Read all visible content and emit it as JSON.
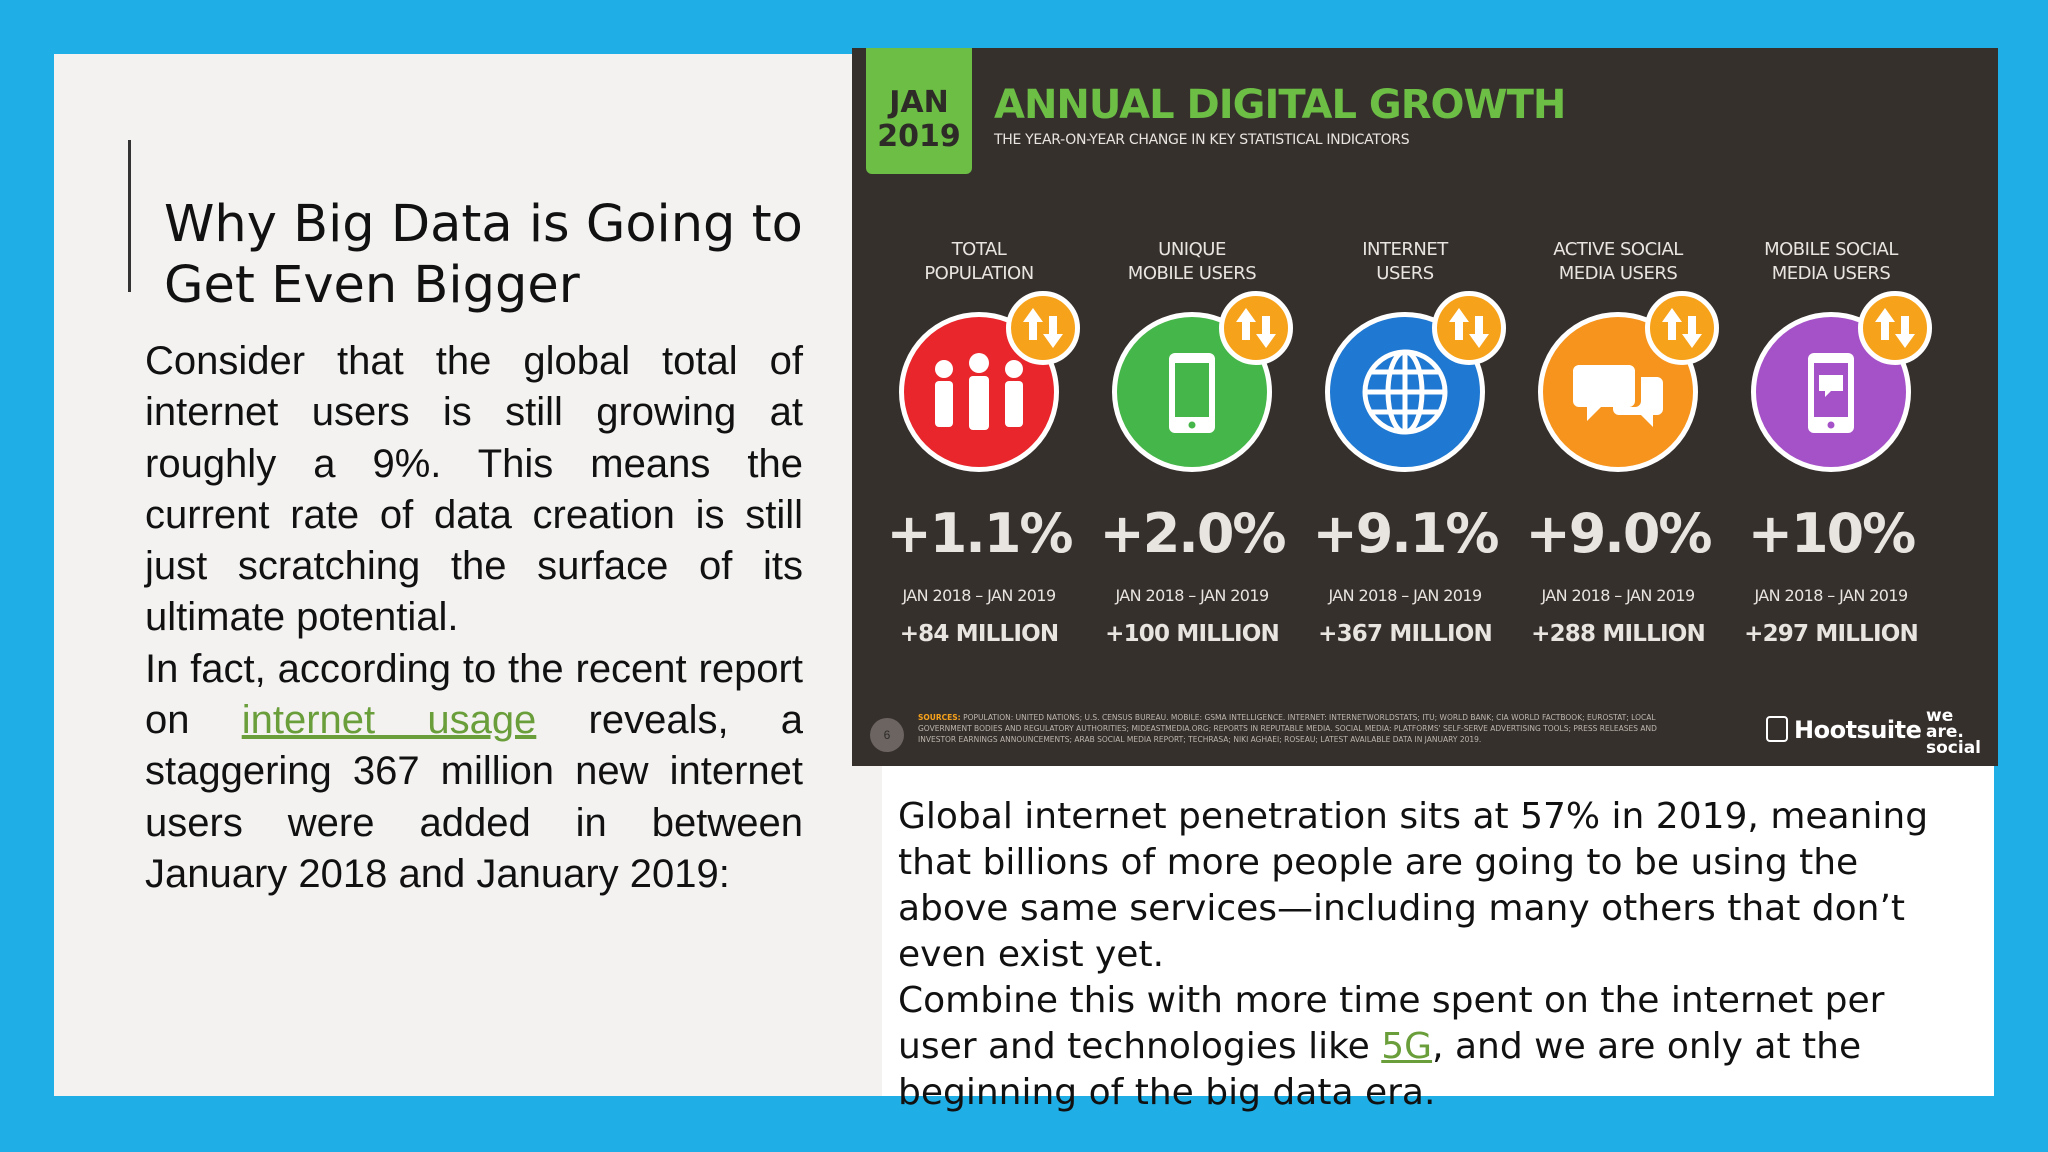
{
  "slide": {
    "title": "Why Big Data is Going to Get Even Bigger",
    "left_text": {
      "p1": "Consider that the global total of internet users is still growing at roughly a 9%. This means the current rate of data creation is still just scratching the surface of its ultimate potential.",
      "p2_before": "In fact, according to the recent report on ",
      "p2_link": "internet usage",
      "p2_after": " reveals, a staggering 367 million new internet users were added in between January 2018 and January 2019:"
    },
    "right_text": {
      "p1": "Global internet penetration sits at 57% in 2019, meaning that billions of more people are going to be using the above same services—including many others that don’t even exist yet.",
      "p2_before": "Combine this with more time spent on the internet per user and technologies like ",
      "p2_link": "5G",
      "p2_after": ", and we are only at the beginning of the big data era."
    },
    "colors": {
      "background": "#1faee6",
      "link": "#6a9e3a",
      "left_panel": "#f3f2f1"
    }
  },
  "infographic": {
    "date_line1": "JAN",
    "date_line2": "2019",
    "title": "ANNUAL DIGITAL GROWTH",
    "subtitle": "THE YEAR-ON-YEAR CHANGE IN KEY STATISTICAL INDICATORS",
    "metrics": [
      {
        "label_1": "TOTAL",
        "label_2": "POPULATION",
        "pct": "+1.1%",
        "period": "JAN 2018 – JAN 2019",
        "delta": "+84 MILLION",
        "color": "#e8262b",
        "icon": "people-icon"
      },
      {
        "label_1": "UNIQUE",
        "label_2": "MOBILE USERS",
        "pct": "+2.0%",
        "period": "JAN 2018 – JAN 2019",
        "delta": "+100 MILLION",
        "color": "#45b649",
        "icon": "phone-icon"
      },
      {
        "label_1": "INTERNET",
        "label_2": "USERS",
        "pct": "+9.1%",
        "period": "JAN 2018 – JAN 2019",
        "delta": "+367 MILLION",
        "color": "#1f78d1",
        "icon": "globe-icon"
      },
      {
        "label_1": "ACTIVE SOCIAL",
        "label_2": "MEDIA USERS",
        "pct": "+9.0%",
        "period": "JAN 2018 – JAN 2019",
        "delta": "+288 MILLION",
        "color": "#f7941d",
        "icon": "chat-icon"
      },
      {
        "label_1": "MOBILE SOCIAL",
        "label_2": "MEDIA USERS",
        "pct": "+10%",
        "period": "JAN 2018 – JAN 2019",
        "delta": "+297 MILLION",
        "color": "#a552c8",
        "icon": "mobile-chat-icon"
      }
    ],
    "sources_label": "SOURCES:",
    "sources_text": "POPULATION: UNITED NATIONS; U.S. CENSUS BUREAU. MOBILE: GSMA INTELLIGENCE. INTERNET: INTERNETWORLDSTATS; ITU; WORLD BANK; CIA WORLD FACTBOOK; EUROSTAT; LOCAL GOVERNMENT BODIES AND REGULATORY AUTHORITIES; MIDEASTMEDIA.ORG; REPORTS IN REPUTABLE MEDIA. SOCIAL MEDIA: PLATFORMS' SELF-SERVE ADVERTISING TOOLS; PRESS RELEASES AND INVESTOR EARNINGS ANNOUNCEMENTS; ARAB SOCIAL MEDIA REPORT; TECHRASA; NIKI AGHAEI; ROSEAU; LATEST AVAILABLE DATA IN JANUARY 2019.",
    "page_number": "6",
    "brand_1": "Hootsuite",
    "brand_2_line1": "we",
    "brand_2_line2": "are.",
    "brand_2_line3": "social"
  }
}
